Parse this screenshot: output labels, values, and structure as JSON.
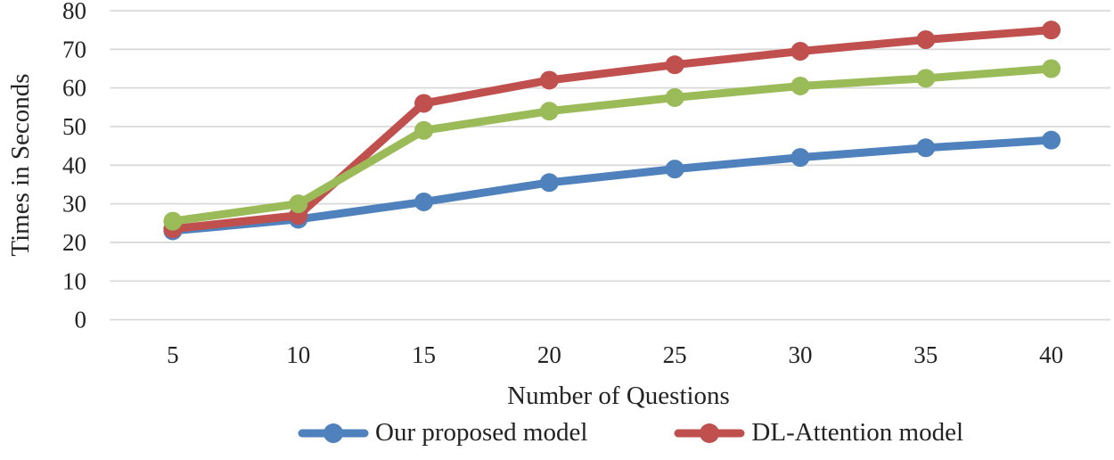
{
  "chart_data": {
    "type": "line",
    "title": "",
    "xlabel": "Number of Questions",
    "ylabel": "Times in Seconds",
    "categories": [
      5,
      10,
      15,
      20,
      25,
      30,
      35,
      40
    ],
    "ylim": [
      0,
      80
    ],
    "ytick_step": 10,
    "grid": true,
    "gridline_color": "#D9D9D9",
    "text_color": "#232323",
    "legend_position": "bottom",
    "series": [
      {
        "name": "Our proposed model",
        "color": "#4F81BD",
        "in_legend": true,
        "values": [
          23,
          26,
          30.5,
          35.5,
          39,
          42,
          44.5,
          46.5
        ]
      },
      {
        "name": "DL-Attention model",
        "color": "#C0504D",
        "in_legend": true,
        "values": [
          23.5,
          27,
          56,
          62,
          66,
          69.5,
          72.5,
          75
        ]
      },
      {
        "name": "unlabeled green series",
        "color": "#9BBB59",
        "in_legend": false,
        "values": [
          25.5,
          30,
          49,
          54,
          57.5,
          60.5,
          62.5,
          65
        ]
      }
    ],
    "legend_items": [
      {
        "label": "Our proposed model",
        "series_index": 0
      },
      {
        "label": "DL-Attention model",
        "series_index": 1
      }
    ]
  }
}
